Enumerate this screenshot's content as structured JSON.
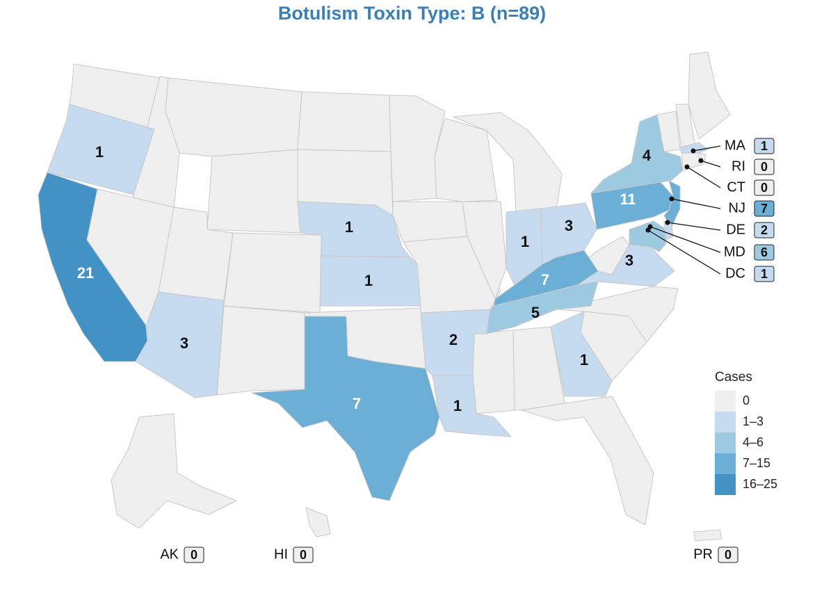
{
  "title": "Botulism Toxin Type: B (n=89)",
  "colors": {
    "c0": "#efefef",
    "c1": "#c6dbef",
    "c2": "#9ecae1",
    "c3": "#6baed6",
    "c4": "#4292c6"
  },
  "states": [
    {
      "id": "CA",
      "value": 21,
      "tier": 4
    },
    {
      "id": "OR",
      "value": 1,
      "tier": 1
    },
    {
      "id": "AZ",
      "value": 3,
      "tier": 1
    },
    {
      "id": "NE",
      "value": 1,
      "tier": 1
    },
    {
      "id": "KS",
      "value": 1,
      "tier": 1
    },
    {
      "id": "TX",
      "value": 7,
      "tier": 3
    },
    {
      "id": "AR",
      "value": 2,
      "tier": 1
    },
    {
      "id": "LA",
      "value": 1,
      "tier": 1
    },
    {
      "id": "IN",
      "value": 1,
      "tier": 1
    },
    {
      "id": "OH",
      "value": 3,
      "tier": 1
    },
    {
      "id": "KY",
      "value": 7,
      "tier": 3
    },
    {
      "id": "TN",
      "value": 5,
      "tier": 2
    },
    {
      "id": "GA",
      "value": 1,
      "tier": 1
    },
    {
      "id": "VA",
      "value": 3,
      "tier": 1
    },
    {
      "id": "PA",
      "value": 11,
      "tier": 3
    },
    {
      "id": "NY",
      "value": 4,
      "tier": 2
    }
  ],
  "callouts": [
    {
      "label": "MA",
      "value": "1",
      "tier": 1
    },
    {
      "label": "RI",
      "value": "0",
      "tier": 0
    },
    {
      "label": "CT",
      "value": "0",
      "tier": 0
    },
    {
      "label": "NJ",
      "value": "7",
      "tier": 3
    },
    {
      "label": "DE",
      "value": "2",
      "tier": 1
    },
    {
      "label": "MD",
      "value": "6",
      "tier": 2
    },
    {
      "label": "DC",
      "value": "1",
      "tier": 1
    }
  ],
  "territories": [
    {
      "label": "AK",
      "value": "0"
    },
    {
      "label": "HI",
      "value": "0"
    },
    {
      "label": "PR",
      "value": "0"
    }
  ],
  "legend": {
    "title": "Cases",
    "items": [
      {
        "label": "0",
        "tier": 0
      },
      {
        "label": "1–3",
        "tier": 1
      },
      {
        "label": "4–6",
        "tier": 2
      },
      {
        "label": "7–15",
        "tier": 3
      },
      {
        "label": "16–25",
        "tier": 4
      }
    ]
  }
}
